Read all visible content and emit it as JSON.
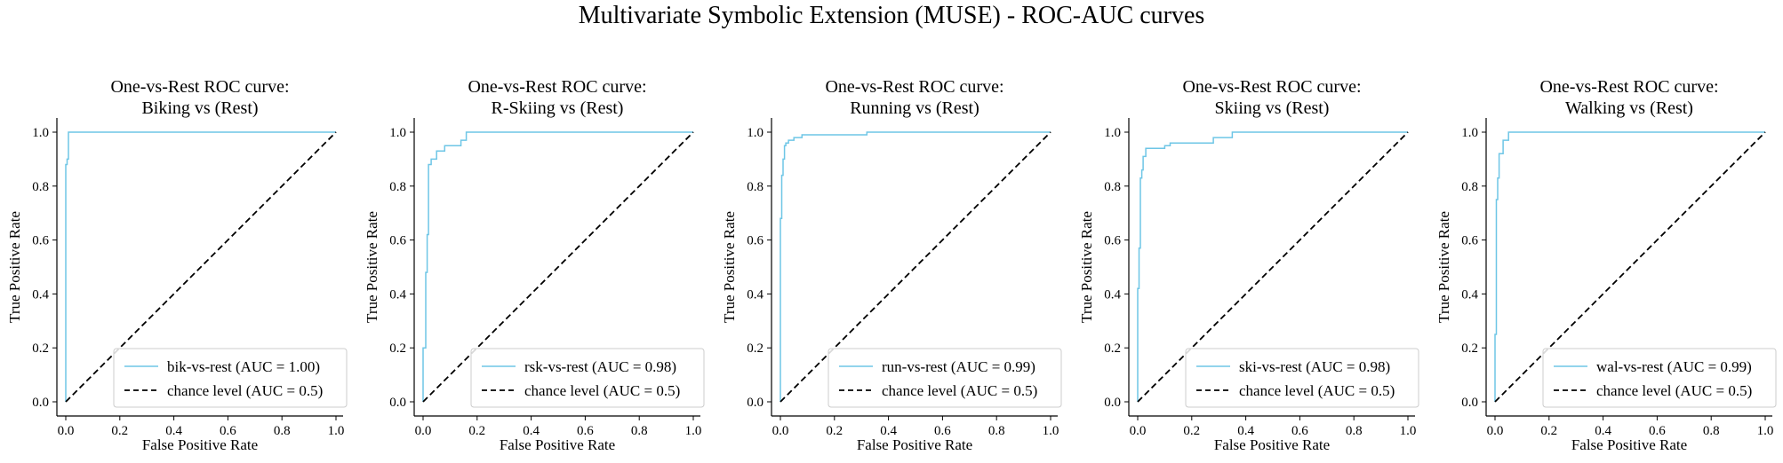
{
  "figure": {
    "title": "Multivariate Symbolic Extension (MUSE) - ROC-AUC curves"
  },
  "colors": {
    "roc_line": "#6ec6e6",
    "chance_line": "#000000",
    "axis": "#000000",
    "legend_border": "#cccccc"
  },
  "chart_data": [
    {
      "type": "line",
      "title_lines": [
        "One-vs-Rest ROC curve:",
        "Biking vs (Rest)"
      ],
      "xlabel": "False Positive Rate",
      "ylabel": "True Positive Rate",
      "xlim": [
        0,
        1
      ],
      "ylim": [
        0,
        1
      ],
      "xticks": [
        "0.0",
        "0.2",
        "0.4",
        "0.6",
        "0.8",
        "1.0"
      ],
      "yticks": [
        "0.0",
        "0.2",
        "0.4",
        "0.6",
        "0.8",
        "1.0"
      ],
      "grid": false,
      "legend_position": "lower-right",
      "series": [
        {
          "name": "bik-vs-rest (AUC = 1.00)",
          "style": "solid",
          "x": [
            0,
            0,
            0.005,
            0.005,
            0.01,
            0.01,
            1.0
          ],
          "y": [
            0,
            0.88,
            0.88,
            0.9,
            0.9,
            1.0,
            1.0
          ]
        },
        {
          "name": "chance level (AUC = 0.5)",
          "style": "dashed",
          "x": [
            0,
            1
          ],
          "y": [
            0,
            1
          ]
        }
      ]
    },
    {
      "type": "line",
      "title_lines": [
        "One-vs-Rest ROC curve:",
        "R-Skiing vs (Rest)"
      ],
      "xlabel": "False Positive Rate",
      "ylabel": "True Positive Rate",
      "xlim": [
        0,
        1
      ],
      "ylim": [
        0,
        1
      ],
      "xticks": [
        "0.0",
        "0.2",
        "0.4",
        "0.6",
        "0.8",
        "1.0"
      ],
      "yticks": [
        "0.0",
        "0.2",
        "0.4",
        "0.6",
        "0.8",
        "1.0"
      ],
      "grid": false,
      "legend_position": "lower-right",
      "series": [
        {
          "name": "rsk-vs-rest (AUC = 0.98)",
          "style": "solid",
          "x": [
            0,
            0,
            0.01,
            0.01,
            0.015,
            0.015,
            0.02,
            0.02,
            0.03,
            0.03,
            0.05,
            0.05,
            0.08,
            0.08,
            0.14,
            0.14,
            0.16,
            0.16,
            1.0
          ],
          "y": [
            0,
            0.2,
            0.2,
            0.48,
            0.48,
            0.62,
            0.62,
            0.88,
            0.88,
            0.9,
            0.9,
            0.93,
            0.93,
            0.95,
            0.95,
            0.97,
            0.97,
            1.0,
            1.0
          ]
        },
        {
          "name": "chance level (AUC = 0.5)",
          "style": "dashed",
          "x": [
            0,
            1
          ],
          "y": [
            0,
            1
          ]
        }
      ]
    },
    {
      "type": "line",
      "title_lines": [
        "One-vs-Rest ROC curve:",
        "Running vs (Rest)"
      ],
      "xlabel": "False Positive Rate",
      "ylabel": "True Positive Rate",
      "xlim": [
        0,
        1
      ],
      "ylim": [
        0,
        1
      ],
      "xticks": [
        "0.0",
        "0.2",
        "0.4",
        "0.6",
        "0.8",
        "1.0"
      ],
      "yticks": [
        "0.0",
        "0.2",
        "0.4",
        "0.6",
        "0.8",
        "1.0"
      ],
      "grid": false,
      "legend_position": "lower-right",
      "series": [
        {
          "name": "run-vs-rest (AUC = 0.99)",
          "style": "solid",
          "x": [
            0,
            0,
            0.005,
            0.005,
            0.01,
            0.01,
            0.015,
            0.015,
            0.02,
            0.02,
            0.03,
            0.03,
            0.05,
            0.05,
            0.08,
            0.08,
            0.32,
            0.32,
            1.0
          ],
          "y": [
            0,
            0.68,
            0.68,
            0.84,
            0.84,
            0.9,
            0.9,
            0.95,
            0.95,
            0.96,
            0.96,
            0.97,
            0.97,
            0.98,
            0.98,
            0.99,
            0.99,
            1.0,
            1.0
          ]
        },
        {
          "name": "chance level (AUC = 0.5)",
          "style": "dashed",
          "x": [
            0,
            1
          ],
          "y": [
            0,
            1
          ]
        }
      ]
    },
    {
      "type": "line",
      "title_lines": [
        "One-vs-Rest ROC curve:",
        "Skiing vs (Rest)"
      ],
      "xlabel": "False Positive Rate",
      "ylabel": "True Positive Rate",
      "xlim": [
        0,
        1
      ],
      "ylim": [
        0,
        1
      ],
      "xticks": [
        "0.0",
        "0.2",
        "0.4",
        "0.6",
        "0.8",
        "1.0"
      ],
      "yticks": [
        "0.0",
        "0.2",
        "0.4",
        "0.6",
        "0.8",
        "1.0"
      ],
      "grid": false,
      "legend_position": "lower-right",
      "series": [
        {
          "name": "ski-vs-rest (AUC = 0.98)",
          "style": "solid",
          "x": [
            0,
            0,
            0.005,
            0.005,
            0.01,
            0.01,
            0.015,
            0.015,
            0.02,
            0.02,
            0.03,
            0.03,
            0.1,
            0.1,
            0.12,
            0.12,
            0.28,
            0.28,
            0.35,
            0.35,
            1.0
          ],
          "y": [
            0,
            0.42,
            0.42,
            0.57,
            0.57,
            0.83,
            0.83,
            0.86,
            0.86,
            0.91,
            0.91,
            0.94,
            0.94,
            0.95,
            0.95,
            0.96,
            0.96,
            0.98,
            0.98,
            1.0,
            1.0
          ]
        },
        {
          "name": "chance level (AUC = 0.5)",
          "style": "dashed",
          "x": [
            0,
            1
          ],
          "y": [
            0,
            1
          ]
        }
      ]
    },
    {
      "type": "line",
      "title_lines": [
        "One-vs-Rest ROC curve:",
        "Walking vs (Rest)"
      ],
      "xlabel": "False Positive Rate",
      "ylabel": "True Positive Rate",
      "xlim": [
        0,
        1
      ],
      "ylim": [
        0,
        1
      ],
      "xticks": [
        "0.0",
        "0.2",
        "0.4",
        "0.6",
        "0.8",
        "1.0"
      ],
      "yticks": [
        "0.0",
        "0.2",
        "0.4",
        "0.6",
        "0.8",
        "1.0"
      ],
      "grid": false,
      "legend_position": "lower-right",
      "series": [
        {
          "name": "wal-vs-rest (AUC = 0.99)",
          "style": "solid",
          "x": [
            0,
            0,
            0.005,
            0.005,
            0.01,
            0.01,
            0.015,
            0.015,
            0.03,
            0.03,
            0.05,
            0.05,
            1.0
          ],
          "y": [
            0,
            0.25,
            0.25,
            0.75,
            0.75,
            0.83,
            0.83,
            0.92,
            0.92,
            0.97,
            0.97,
            1.0,
            1.0
          ]
        },
        {
          "name": "chance level (AUC = 0.5)",
          "style": "dashed",
          "x": [
            0,
            1
          ],
          "y": [
            0,
            1
          ]
        }
      ]
    }
  ]
}
